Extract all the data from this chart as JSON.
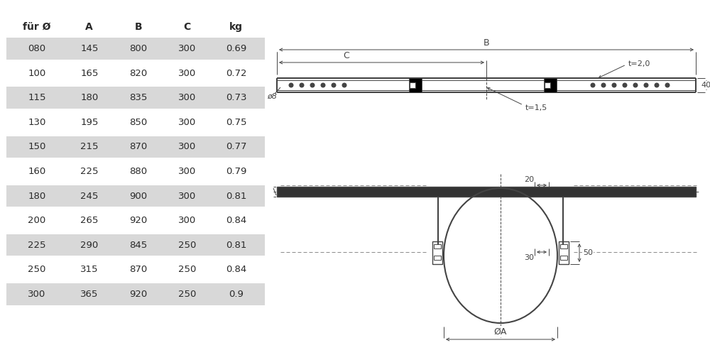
{
  "table_headers": [
    "für Ø",
    "A",
    "B",
    "C",
    "kg"
  ],
  "table_rows": [
    [
      "080",
      "145",
      "800",
      "300",
      "0.69"
    ],
    [
      "100",
      "165",
      "820",
      "300",
      "0.72"
    ],
    [
      "115",
      "180",
      "835",
      "300",
      "0.73"
    ],
    [
      "130",
      "195",
      "850",
      "300",
      "0.75"
    ],
    [
      "150",
      "215",
      "870",
      "300",
      "0.77"
    ],
    [
      "160",
      "225",
      "880",
      "300",
      "0.79"
    ],
    [
      "180",
      "245",
      "900",
      "300",
      "0.81"
    ],
    [
      "200",
      "265",
      "920",
      "300",
      "0.84"
    ],
    [
      "225",
      "290",
      "845",
      "250",
      "0.81"
    ],
    [
      "250",
      "315",
      "870",
      "250",
      "0.84"
    ],
    [
      "300",
      "365",
      "920",
      "250",
      "0.9"
    ]
  ],
  "shaded_rows": [
    0,
    2,
    4,
    6,
    8,
    10
  ],
  "row_bg_shaded": "#d8d8d8",
  "row_bg_normal": "#ffffff",
  "text_color": "#2a2a2a",
  "line_color": "#444444",
  "bg_color": "#ffffff"
}
